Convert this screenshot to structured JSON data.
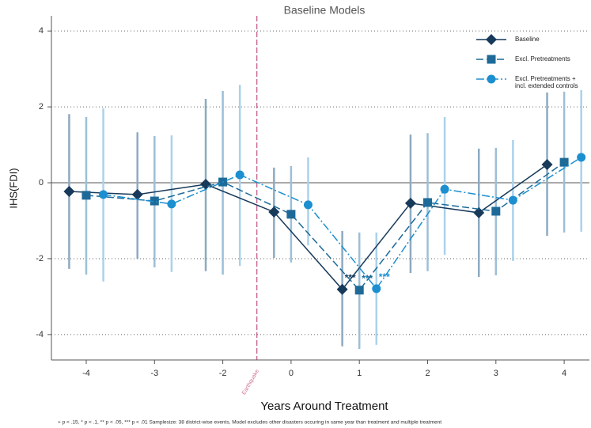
{
  "chart_data": {
    "type": "line",
    "title": "Baseline Models",
    "x_label": "Years Around Treatment",
    "y_label": "IHS(FDI)",
    "categories": [
      "-4",
      "-3",
      "-2",
      "0",
      "1",
      "2",
      "3",
      "4"
    ],
    "ylim": [
      -4.67,
      4.4
    ],
    "yticks": [
      -4,
      -2,
      0,
      2,
      4
    ],
    "grid": true,
    "hline": 0,
    "reference_line_label": "Earthquake",
    "legend": "top-right",
    "series": [
      {
        "name": "Baseline",
        "color": "#17395a",
        "ci_color": "#8eaac0",
        "marker": "diamond",
        "dash": "solid",
        "values": [
          -0.23,
          -0.31,
          -0.04,
          -0.77,
          -2.81,
          -0.54,
          -0.79,
          0.48
        ],
        "lower": [
          -2.27,
          -2.0,
          -2.33,
          -1.98,
          -4.31,
          -2.38,
          -2.48,
          -1.4
        ],
        "upper": [
          1.81,
          1.33,
          2.21,
          0.4,
          -1.27,
          1.27,
          0.9,
          2.38
        ],
        "significance": [
          null,
          null,
          null,
          null,
          "***",
          null,
          null,
          null
        ]
      },
      {
        "name": "Excl. Pretreatments",
        "color": "#1d6a98",
        "ci_color": "#9cbfd7",
        "marker": "square",
        "dash": "dashed",
        "values": [
          -0.33,
          -0.48,
          0.02,
          -0.83,
          -2.83,
          -0.52,
          -0.75,
          0.54
        ],
        "lower": [
          -2.42,
          -2.23,
          -2.42,
          -2.1,
          -4.38,
          -2.33,
          -2.44,
          -1.31
        ],
        "upper": [
          1.73,
          1.23,
          2.42,
          0.44,
          -1.31,
          1.31,
          0.92,
          2.4
        ],
        "significance": [
          null,
          null,
          null,
          null,
          "***",
          null,
          null,
          null
        ]
      },
      {
        "name": "Excl. Pretreatments + incl. extended controls",
        "color": "#1b8fd0",
        "ci_color": "#a9d2eb",
        "marker": "circle",
        "dash": "dashdot",
        "values": [
          -0.31,
          -0.56,
          0.21,
          -0.58,
          -2.79,
          -0.17,
          -0.46,
          0.67
        ],
        "lower": [
          -2.6,
          -2.35,
          -2.19,
          -1.65,
          -4.27,
          -1.9,
          -2.06,
          -1.29
        ],
        "upper": [
          1.96,
          1.25,
          2.58,
          0.67,
          -1.31,
          1.73,
          1.13,
          2.44
        ],
        "significance": [
          null,
          null,
          null,
          null,
          "***",
          null,
          null,
          null
        ]
      }
    ],
    "footnote": "+ p < .15, * p < .1, ** p < .05, *** p < .01  Samplesize: 38 district-wise events, Model excludes other disasters occuring in same year than treatment and multiple treatment"
  }
}
